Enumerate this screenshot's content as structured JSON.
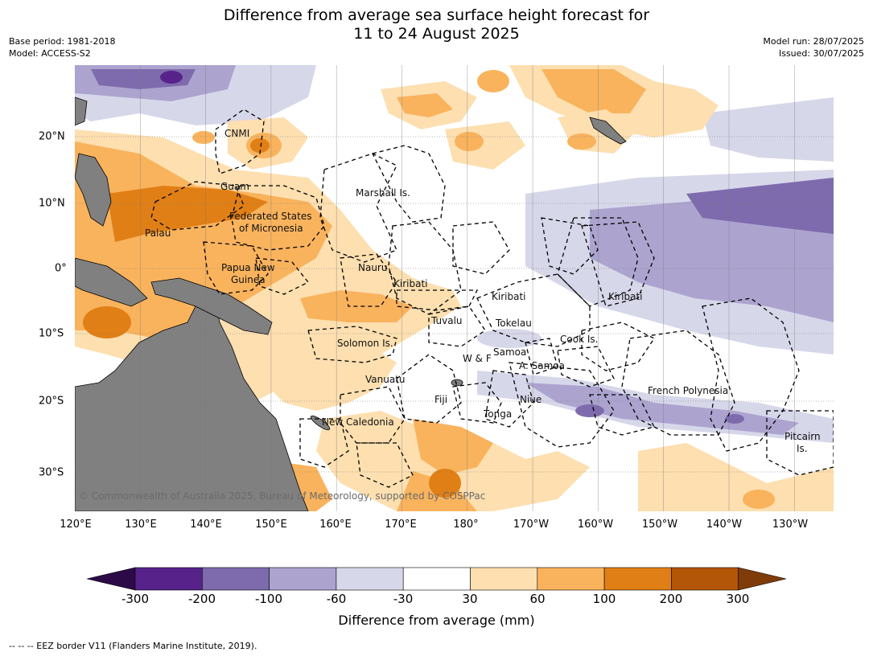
{
  "title_line1": "Difference from average sea surface height forecast for",
  "title_line2": "11 to 24 August 2025",
  "base_period": "Base period: 1981-2018",
  "model": "Model: ACCESS-S2",
  "model_run": "Model run: 28/07/2025",
  "issued": "Issued: 30/07/2025",
  "longitude_labels": [
    "120°E",
    "130°E",
    "140°E",
    "150°E",
    "160°E",
    "170°E",
    "180°",
    "170°W",
    "160°W",
    "150°W",
    "140°W",
    "130°W"
  ],
  "latitude_labels": [
    "20°N",
    "10°N",
    "0°",
    "10°S",
    "20°S",
    "30°S"
  ],
  "place_labels": [
    "CNMI",
    "Guam",
    "Marshall Is.",
    "Federated States",
    "of Micronesia",
    "Palau",
    "Papua New",
    "Guinea",
    "Nauru",
    "Kiribati",
    "Kiribati",
    "Kiribati",
    "Tuvalu",
    "Tokelau",
    "Solomon Is.",
    "Samoa",
    "W & F",
    "A. Samoa",
    "Cook Is.",
    "Vanuatu",
    "Fiji",
    "Niue",
    "French Polynesia",
    "Tonga",
    "New Caledonia",
    "Pitcairn",
    "Is."
  ],
  "copyright": "© Commonwealth of Australia 2025, Bureau of Meteorology, supported by COSPPac",
  "colorbar": {
    "ticks": [
      "-300",
      "-200",
      "-100",
      "-60",
      "-30",
      "30",
      "60",
      "100",
      "200",
      "300"
    ],
    "colors": [
      "#2c0a47",
      "#57238b",
      "#7e6bad",
      "#aca4cf",
      "#d7d7ea",
      "#ffffff",
      "#fddfb0",
      "#f9b35d",
      "#e07f15",
      "#b35607",
      "#7f3b08"
    ],
    "label": "Difference from average (mm)"
  },
  "footer": "--  --  -- EEZ border V11 (Flanders Marine Institute, 2019)."
}
